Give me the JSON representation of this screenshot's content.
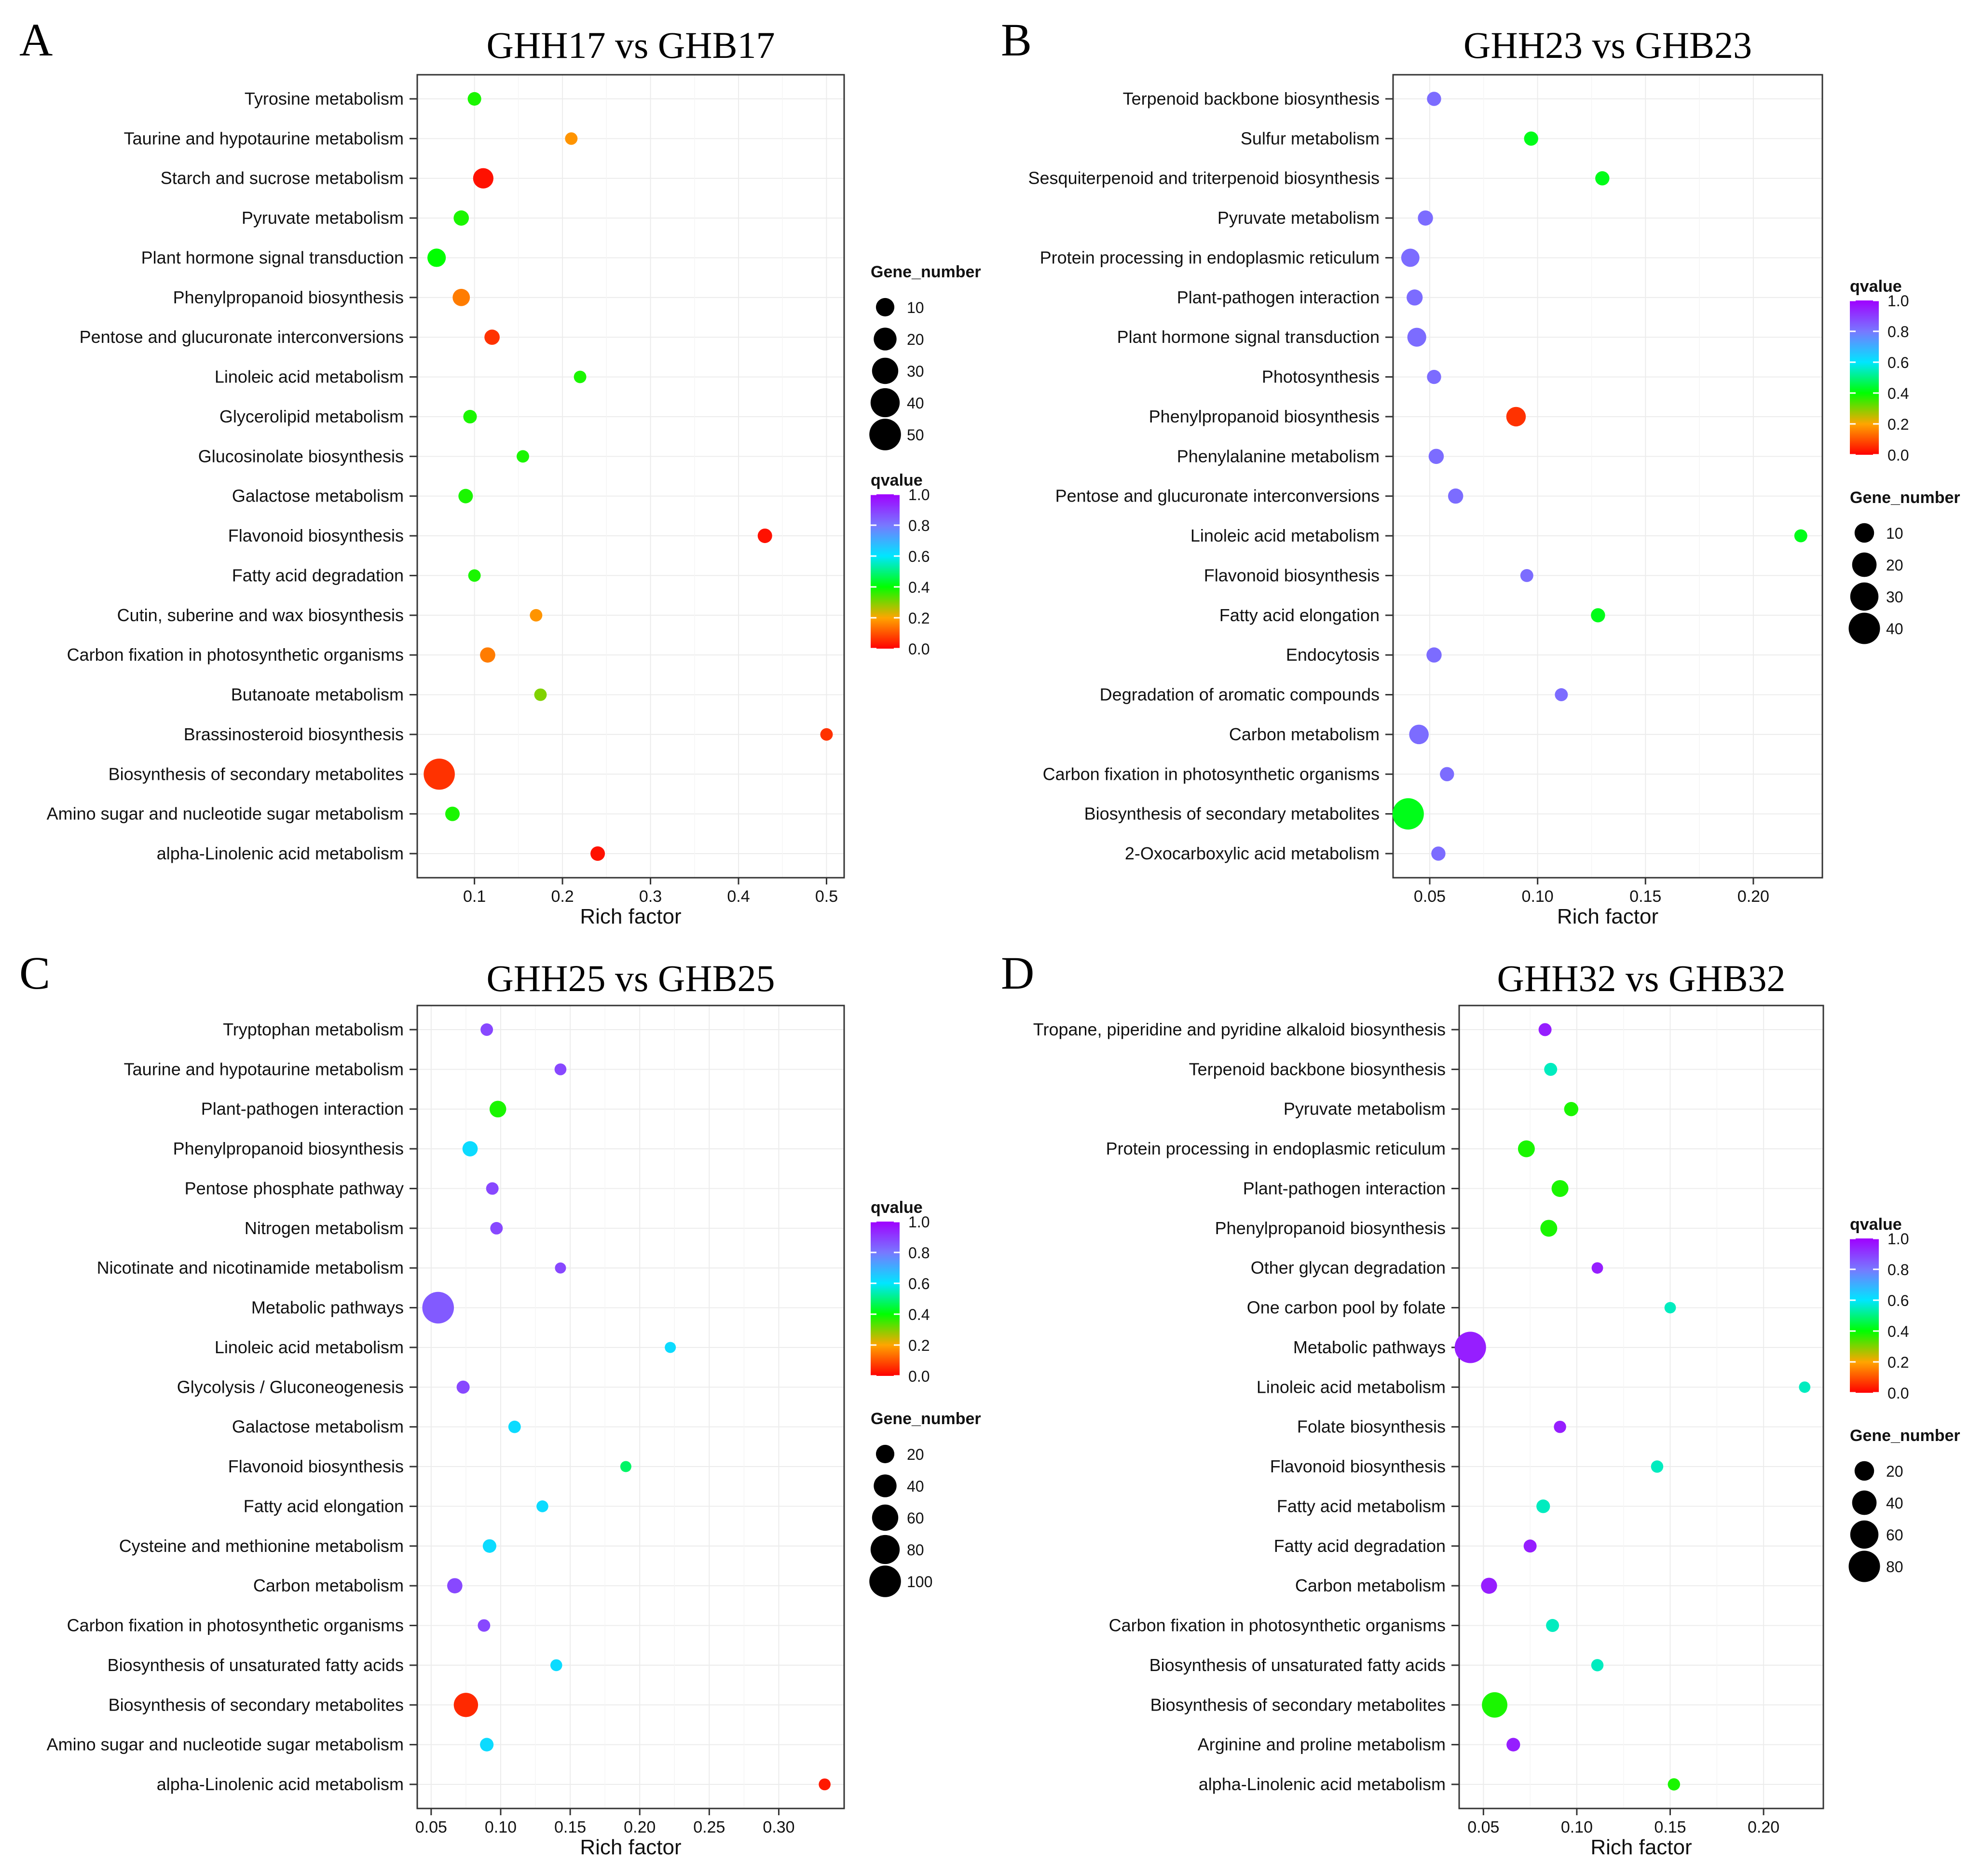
{
  "chart_data": [
    {
      "panel": "A",
      "title": "GHH17 vs GHB17",
      "type": "scatter",
      "xlabel": "Rich factor",
      "xlim": [
        0.035,
        0.52
      ],
      "xticks": [
        0.1,
        0.2,
        0.3,
        0.4,
        0.5
      ],
      "legend_order": [
        "size",
        "color"
      ],
      "size_legend": {
        "title": "Gene_number",
        "values": [
          10,
          20,
          30,
          40,
          50
        ],
        "max": 55
      },
      "color_legend": {
        "title": "qvalue",
        "ticks": [
          1.0,
          0.8,
          0.6,
          0.4,
          0.2,
          0.0
        ]
      },
      "categories": [
        "Tyrosine metabolism",
        "Taurine and hypotaurine metabolism",
        "Starch and sucrose metabolism",
        "Pyruvate metabolism",
        "Plant hormone signal transduction",
        "Phenylpropanoid biosynthesis",
        "Pentose and glucuronate interconversions",
        "Linoleic acid metabolism",
        "Glycerolipid metabolism",
        "Glucosinolate biosynthesis",
        "Galactose metabolism",
        "Flavonoid biosynthesis",
        "Fatty acid degradation",
        "Cutin, suberine and wax biosynthesis",
        "Carbon fixation in photosynthetic organisms",
        "Butanoate metabolism",
        "Brassinosteroid biosynthesis",
        "Biosynthesis of secondary metabolites",
        "Amino sugar and nucleotide sugar metabolism",
        "alpha-Linolenic acid metabolism"
      ],
      "points": [
        {
          "x": 0.1,
          "q": 0.38,
          "n": 3
        },
        {
          "x": 0.21,
          "q": 0.18,
          "n": 2
        },
        {
          "x": 0.11,
          "q": 0.02,
          "n": 14
        },
        {
          "x": 0.085,
          "q": 0.38,
          "n": 5
        },
        {
          "x": 0.057,
          "q": 0.4,
          "n": 10
        },
        {
          "x": 0.085,
          "q": 0.15,
          "n": 8
        },
        {
          "x": 0.12,
          "q": 0.06,
          "n": 5
        },
        {
          "x": 0.22,
          "q": 0.38,
          "n": 2
        },
        {
          "x": 0.095,
          "q": 0.38,
          "n": 3
        },
        {
          "x": 0.155,
          "q": 0.38,
          "n": 2
        },
        {
          "x": 0.09,
          "q": 0.38,
          "n": 4
        },
        {
          "x": 0.43,
          "q": 0.02,
          "n": 4
        },
        {
          "x": 0.1,
          "q": 0.38,
          "n": 2
        },
        {
          "x": 0.17,
          "q": 0.18,
          "n": 2
        },
        {
          "x": 0.115,
          "q": 0.15,
          "n": 5
        },
        {
          "x": 0.175,
          "q": 0.3,
          "n": 2
        },
        {
          "x": 0.5,
          "q": 0.06,
          "n": 2
        },
        {
          "x": 0.06,
          "q": 0.06,
          "n": 48
        },
        {
          "x": 0.075,
          "q": 0.38,
          "n": 4
        },
        {
          "x": 0.24,
          "q": 0.02,
          "n": 4
        }
      ]
    },
    {
      "panel": "B",
      "title": "GHH23 vs GHB23",
      "type": "scatter",
      "xlabel": "Rich factor",
      "xlim": [
        0.033,
        0.232
      ],
      "xticks": [
        0.05,
        0.1,
        0.15,
        0.2
      ],
      "legend_order": [
        "color",
        "size"
      ],
      "size_legend": {
        "title": "Gene_number",
        "values": [
          10,
          20,
          30,
          40
        ],
        "max": 45
      },
      "color_legend": {
        "title": "qvalue",
        "ticks": [
          1.0,
          0.8,
          0.6,
          0.4,
          0.2,
          0.0
        ]
      },
      "categories": [
        "Terpenoid backbone biosynthesis",
        "Sulfur metabolism",
        "Sesquiterpenoid and triterpenoid biosynthesis",
        "Pyruvate metabolism",
        "Protein processing in endoplasmic reticulum",
        "Plant-pathogen interaction",
        "Plant hormone signal transduction",
        "Photosynthesis",
        "Phenylpropanoid biosynthesis",
        "Phenylalanine metabolism",
        "Pentose and glucuronate interconversions",
        "Linoleic acid metabolism",
        "Flavonoid biosynthesis",
        "Fatty acid elongation",
        "Endocytosis",
        "Degradation of aromatic compounds",
        "Carbon metabolism",
        "Carbon fixation in photosynthetic organisms",
        "Biosynthesis of secondary metabolites",
        "2-Oxocarboxylic acid metabolism"
      ],
      "points": [
        {
          "x": 0.052,
          "q": 0.82,
          "n": 3
        },
        {
          "x": 0.097,
          "q": 0.42,
          "n": 3
        },
        {
          "x": 0.13,
          "q": 0.42,
          "n": 3
        },
        {
          "x": 0.048,
          "q": 0.82,
          "n": 4
        },
        {
          "x": 0.041,
          "q": 0.82,
          "n": 8
        },
        {
          "x": 0.043,
          "q": 0.82,
          "n": 5
        },
        {
          "x": 0.044,
          "q": 0.82,
          "n": 9
        },
        {
          "x": 0.052,
          "q": 0.82,
          "n": 3
        },
        {
          "x": 0.09,
          "q": 0.06,
          "n": 10
        },
        {
          "x": 0.053,
          "q": 0.82,
          "n": 4
        },
        {
          "x": 0.062,
          "q": 0.82,
          "n": 4
        },
        {
          "x": 0.222,
          "q": 0.42,
          "n": 2
        },
        {
          "x": 0.095,
          "q": 0.82,
          "n": 2
        },
        {
          "x": 0.128,
          "q": 0.42,
          "n": 3
        },
        {
          "x": 0.052,
          "q": 0.82,
          "n": 4
        },
        {
          "x": 0.111,
          "q": 0.82,
          "n": 2
        },
        {
          "x": 0.045,
          "q": 0.82,
          "n": 10
        },
        {
          "x": 0.058,
          "q": 0.82,
          "n": 3
        },
        {
          "x": 0.04,
          "q": 0.42,
          "n": 40
        },
        {
          "x": 0.054,
          "q": 0.82,
          "n": 3
        }
      ]
    },
    {
      "panel": "C",
      "title": "GHH25 vs GHB25",
      "type": "scatter",
      "xlabel": "Rich factor",
      "xlim": [
        0.04,
        0.347
      ],
      "xticks": [
        0.05,
        0.1,
        0.15,
        0.2,
        0.25,
        0.3
      ],
      "legend_order": [
        "color",
        "size"
      ],
      "size_legend": {
        "title": "Gene_number",
        "values": [
          20,
          40,
          60,
          80,
          100
        ],
        "max": 110
      },
      "color_legend": {
        "title": "qvalue",
        "ticks": [
          1.0,
          0.8,
          0.6,
          0.4,
          0.2,
          0.0
        ]
      },
      "categories": [
        "Tryptophan metabolism",
        "Taurine and hypotaurine metabolism",
        "Plant-pathogen interaction",
        "Phenylpropanoid biosynthesis",
        "Pentose phosphate pathway",
        "Nitrogen metabolism",
        "Nicotinate and nicotinamide metabolism",
        "Metabolic pathways",
        "Linoleic acid metabolism",
        "Glycolysis / Gluconeogenesis",
        "Galactose metabolism",
        "Flavonoid biosynthesis",
        "Fatty acid elongation",
        "Cysteine and methionine metabolism",
        "Carbon metabolism",
        "Carbon fixation in photosynthetic organisms",
        "Biosynthesis of unsaturated fatty acids",
        "Biosynthesis of secondary metabolites",
        "Amino sugar and nucleotide sugar metabolism",
        "alpha-Linolenic acid metabolism"
      ],
      "points": [
        {
          "x": 0.09,
          "q": 0.88,
          "n": 4
        },
        {
          "x": 0.143,
          "q": 0.88,
          "n": 3
        },
        {
          "x": 0.098,
          "q": 0.38,
          "n": 14
        },
        {
          "x": 0.078,
          "q": 0.62,
          "n": 10
        },
        {
          "x": 0.094,
          "q": 0.88,
          "n": 4
        },
        {
          "x": 0.097,
          "q": 0.88,
          "n": 4
        },
        {
          "x": 0.143,
          "q": 0.88,
          "n": 2
        },
        {
          "x": 0.055,
          "q": 0.85,
          "n": 100
        },
        {
          "x": 0.222,
          "q": 0.62,
          "n": 2
        },
        {
          "x": 0.073,
          "q": 0.88,
          "n": 5
        },
        {
          "x": 0.11,
          "q": 0.62,
          "n": 4
        },
        {
          "x": 0.19,
          "q": 0.48,
          "n": 2
        },
        {
          "x": 0.13,
          "q": 0.62,
          "n": 3
        },
        {
          "x": 0.092,
          "q": 0.62,
          "n": 6
        },
        {
          "x": 0.067,
          "q": 0.88,
          "n": 10
        },
        {
          "x": 0.088,
          "q": 0.88,
          "n": 4
        },
        {
          "x": 0.14,
          "q": 0.62,
          "n": 3
        },
        {
          "x": 0.075,
          "q": 0.05,
          "n": 48
        },
        {
          "x": 0.09,
          "q": 0.62,
          "n": 6
        },
        {
          "x": 0.333,
          "q": 0.03,
          "n": 3
        }
      ]
    },
    {
      "panel": "D",
      "title": "GHH32 vs GHB32",
      "type": "scatter",
      "xlabel": "Rich factor",
      "xlim": [
        0.037,
        0.232
      ],
      "xticks": [
        0.05,
        0.1,
        0.15,
        0.2
      ],
      "legend_order": [
        "color",
        "size"
      ],
      "size_legend": {
        "title": "Gene_number",
        "values": [
          20,
          40,
          60,
          80
        ],
        "max": 90
      },
      "color_legend": {
        "title": "qvalue",
        "ticks": [
          1.0,
          0.8,
          0.6,
          0.4,
          0.2,
          0.0
        ]
      },
      "categories": [
        "Tropane, piperidine and pyridine alkaloid biosynthesis",
        "Terpenoid backbone biosynthesis",
        "Pyruvate metabolism",
        "Protein processing in endoplasmic reticulum",
        "Plant-pathogen interaction",
        "Phenylpropanoid biosynthesis",
        "Other glycan degradation",
        "One carbon pool by folate",
        "Metabolic pathways",
        "Linoleic acid metabolism",
        "Folate biosynthesis",
        "Flavonoid biosynthesis",
        "Fatty acid metabolism",
        "Fatty acid degradation",
        "Carbon metabolism",
        "Carbon fixation in photosynthetic organisms",
        "Biosynthesis of unsaturated fatty acids",
        "Biosynthesis of secondary metabolites",
        "Arginine and proline metabolism",
        "alpha-Linolenic acid metabolism"
      ],
      "points": [
        {
          "x": 0.083,
          "q": 0.95,
          "n": 4
        },
        {
          "x": 0.086,
          "q": 0.55,
          "n": 4
        },
        {
          "x": 0.097,
          "q": 0.38,
          "n": 6
        },
        {
          "x": 0.073,
          "q": 0.38,
          "n": 12
        },
        {
          "x": 0.091,
          "q": 0.38,
          "n": 12
        },
        {
          "x": 0.085,
          "q": 0.38,
          "n": 12
        },
        {
          "x": 0.111,
          "q": 0.95,
          "n": 2
        },
        {
          "x": 0.15,
          "q": 0.55,
          "n": 2
        },
        {
          "x": 0.043,
          "q": 0.95,
          "n": 80
        },
        {
          "x": 0.222,
          "q": 0.55,
          "n": 2
        },
        {
          "x": 0.091,
          "q": 0.95,
          "n": 3
        },
        {
          "x": 0.143,
          "q": 0.55,
          "n": 3
        },
        {
          "x": 0.082,
          "q": 0.55,
          "n": 5
        },
        {
          "x": 0.075,
          "q": 0.95,
          "n": 4
        },
        {
          "x": 0.053,
          "q": 0.95,
          "n": 10
        },
        {
          "x": 0.087,
          "q": 0.55,
          "n": 4
        },
        {
          "x": 0.111,
          "q": 0.55,
          "n": 3
        },
        {
          "x": 0.056,
          "q": 0.38,
          "n": 45
        },
        {
          "x": 0.066,
          "q": 0.95,
          "n": 5
        },
        {
          "x": 0.152,
          "q": 0.38,
          "n": 3
        }
      ]
    }
  ]
}
